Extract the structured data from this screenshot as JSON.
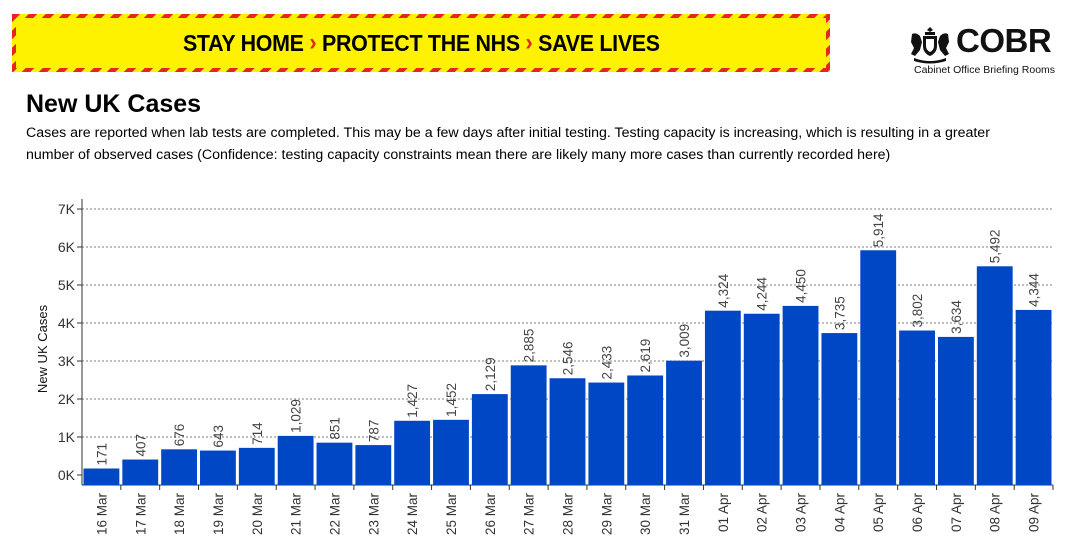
{
  "banner": {
    "parts": [
      "STAY HOME",
      "PROTECT THE NHS",
      "SAVE LIVES"
    ],
    "separator": "›",
    "colors": {
      "background": "#fff200",
      "stripe": "#e4261d"
    }
  },
  "logo": {
    "wordmark": "COBR",
    "subtitle": "Cabinet Office Briefing Rooms",
    "icon": "royal-crest-icon"
  },
  "title": "New UK Cases",
  "subtitle": "Cases are reported when lab tests are completed. This may be a few days after initial testing. Testing capacity is increasing, which is resulting in a greater number of observed cases (Confidence: testing capacity constraints mean there are likely many more cases than currently recorded here)",
  "chart_data": {
    "type": "bar",
    "ylabel": "New UK Cases",
    "xlabel": "",
    "ylim": [
      0,
      7000
    ],
    "yticks": [
      0,
      1000,
      2000,
      3000,
      4000,
      5000,
      6000,
      7000
    ],
    "ytick_labels": [
      "0K",
      "1K",
      "2K",
      "3K",
      "4K",
      "5K",
      "6K",
      "7K"
    ],
    "grid": "horizontal dashed",
    "bar_color": "#0047c6",
    "categories": [
      "16 Mar",
      "17 Mar",
      "18 Mar",
      "19 Mar",
      "20 Mar",
      "21 Mar",
      "22 Mar",
      "23 Mar",
      "24 Mar",
      "25 Mar",
      "26 Mar",
      "27 Mar",
      "28 Mar",
      "29 Mar",
      "30 Mar",
      "31 Mar",
      "01 Apr",
      "02 Apr",
      "03 Apr",
      "04 Apr",
      "05 Apr",
      "06 Apr",
      "07 Apr",
      "08 Apr",
      "09 Apr"
    ],
    "values": [
      171,
      407,
      676,
      643,
      714,
      1029,
      851,
      787,
      1427,
      1452,
      2129,
      2885,
      2546,
      2433,
      2619,
      3009,
      4324,
      4244,
      4450,
      3735,
      5914,
      3802,
      3634,
      5492,
      4344
    ],
    "data_labels": [
      "171",
      "407",
      "676",
      "643",
      "714",
      "1,029",
      "851",
      "787",
      "1,427",
      "1,452",
      "2,129",
      "2,885",
      "2,546",
      "2,433",
      "2,619",
      "3,009",
      "4,324",
      "4,244",
      "4,450",
      "3,735",
      "5,914",
      "3,802",
      "3,634",
      "5,492",
      "4,344"
    ]
  }
}
